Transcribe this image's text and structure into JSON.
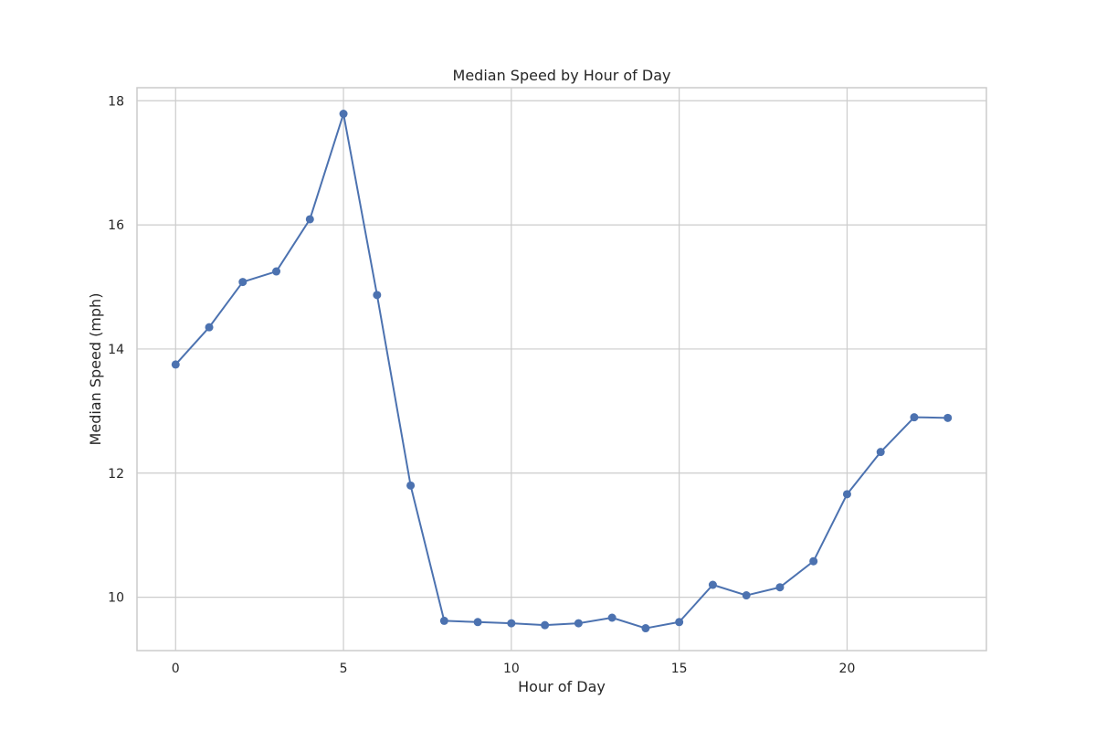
{
  "chart_data": {
    "type": "line",
    "title": "Median Speed by Hour of Day",
    "xlabel": "Hour of Day",
    "ylabel": "Median Speed (mph)",
    "xlim": [
      -1.15,
      24.15
    ],
    "ylim": [
      9.14,
      18.21
    ],
    "xticks": [
      0,
      5,
      10,
      15,
      20
    ],
    "yticks": [
      10,
      12,
      14,
      16,
      18
    ],
    "grid": true,
    "legend": "none",
    "line_color": "#4c72b0",
    "grid_color": "#cccccc",
    "spine_color": "#cccccc",
    "series": [
      {
        "x": [
          0,
          1,
          2,
          3,
          4,
          5,
          6,
          7,
          8,
          9,
          10,
          11,
          12,
          13,
          14,
          15,
          16,
          17,
          18,
          19,
          20,
          21,
          22,
          23
        ],
        "values": [
          13.75,
          14.35,
          15.08,
          15.25,
          16.09,
          17.79,
          14.87,
          11.8,
          9.62,
          9.6,
          9.58,
          9.55,
          9.58,
          9.67,
          9.5,
          9.6,
          10.2,
          10.03,
          10.16,
          10.58,
          11.66,
          12.34,
          12.9,
          12.89
        ]
      }
    ]
  }
}
